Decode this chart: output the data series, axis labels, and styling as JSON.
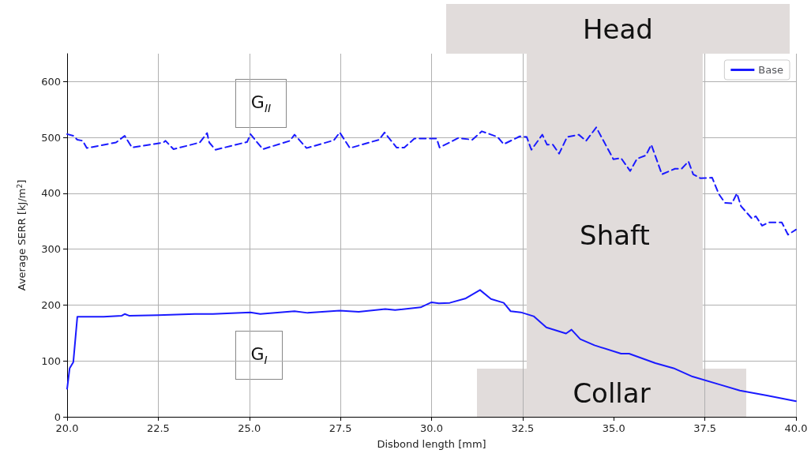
{
  "chart_data": {
    "type": "line",
    "xlabel": "Disbond length [mm]",
    "ylabel": "Average SERR [kJ/m$^{2}$]",
    "xlim": [
      20,
      40
    ],
    "ylim": [
      0,
      650
    ],
    "xticks": [
      {
        "value": 20,
        "label": "20.0"
      },
      {
        "value": 22.5,
        "label": "22.5"
      },
      {
        "value": 25,
        "label": "25.0"
      },
      {
        "value": 27.5,
        "label": "27.5"
      },
      {
        "value": 30,
        "label": "30.0"
      },
      {
        "value": 32.5,
        "label": "32.5"
      },
      {
        "value": 35,
        "label": "35.0"
      },
      {
        "value": 37.5,
        "label": "37.5"
      },
      {
        "value": 40,
        "label": "40.0"
      }
    ],
    "yticks": [
      0,
      100,
      200,
      300,
      400,
      500,
      600
    ],
    "grid": true,
    "legend": "top right",
    "marker": "none",
    "series": [
      {
        "name": "Base",
        "color": "#1a1aff",
        "line_style": "solid",
        "x": [
          20.0,
          20.07,
          20.17,
          20.28,
          21.0,
          21.5,
          21.58,
          21.7,
          22.5,
          23.0,
          23.5,
          24.0,
          25.03,
          25.3,
          26.24,
          26.6,
          27.48,
          28.0,
          28.73,
          29.0,
          29.7,
          30.0,
          30.2,
          30.5,
          30.94,
          31.33,
          31.63,
          31.98,
          32.17,
          32.45,
          32.8,
          33.15,
          33.69,
          33.84,
          34.08,
          34.47,
          35.2,
          35.42,
          36.14,
          36.64,
          37.16,
          37.94,
          38.46,
          39.2,
          40.0
        ],
        "values": [
          50,
          87,
          98,
          179,
          179,
          181,
          184,
          181,
          182,
          183,
          184,
          184,
          187,
          184,
          189,
          186,
          190,
          188,
          193,
          191,
          196,
          205,
          203,
          204,
          212,
          227,
          211,
          204,
          189,
          187,
          180,
          160,
          149,
          156,
          139,
          128,
          113,
          113,
          96,
          87,
          72,
          57,
          47,
          38,
          28
        ]
      },
      {
        "color": "#1a1aff",
        "line_style": "dashed",
        "x": [
          20.0,
          20.17,
          20.28,
          20.43,
          20.54,
          21.34,
          21.58,
          21.78,
          22.64,
          22.7,
          22.92,
          23.64,
          23.84,
          23.9,
          24.07,
          24.94,
          25.03,
          25.37,
          26.11,
          26.24,
          26.57,
          27.32,
          27.48,
          27.76,
          28.56,
          28.71,
          29.04,
          29.25,
          29.53,
          29.97,
          30.14,
          30.22,
          30.73,
          31.12,
          31.38,
          31.81,
          31.98,
          32.42,
          32.61,
          32.74,
          33.04,
          33.17,
          33.33,
          33.5,
          33.72,
          34.04,
          34.24,
          34.52,
          34.99,
          35.2,
          35.45,
          35.64,
          35.88,
          36.03,
          36.32,
          36.68,
          36.86,
          37.05,
          37.18,
          37.38,
          37.7,
          37.88,
          38.05,
          38.24,
          38.38,
          38.49,
          38.79,
          38.9,
          39.07,
          39.25,
          39.61,
          39.78,
          40.0
        ],
        "values": [
          506,
          503,
          496,
          494,
          481,
          491,
          503,
          482,
          491,
          494,
          479,
          491,
          508,
          491,
          478,
          492,
          506,
          479,
          494,
          505,
          481,
          495,
          509,
          481,
          496,
          509,
          482,
          482,
          498,
          498,
          498,
          482,
          499,
          496,
          511,
          501,
          488,
          502,
          501,
          478,
          505,
          487,
          487,
          471,
          501,
          505,
          494,
          518,
          461,
          463,
          440,
          462,
          468,
          487,
          434,
          444,
          444,
          457,
          434,
          427,
          428,
          399,
          383,
          382,
          400,
          377,
          355,
          359,
          342,
          348,
          348,
          326,
          335
        ]
      }
    ],
    "bands": [
      {
        "axis": "x",
        "from": 32.61,
        "to": 37.44,
        "label": "Shaft",
        "color": "#e1dcdb"
      }
    ],
    "annotations": [
      "Head",
      "Collar",
      "G$_{II}$",
      "G$_{I}$"
    ]
  }
}
